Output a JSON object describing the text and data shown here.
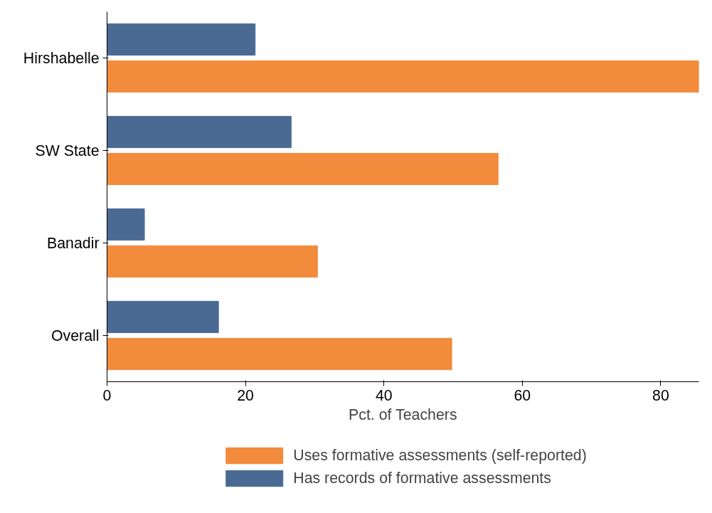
{
  "chart_data": {
    "type": "bar",
    "orientation": "horizontal",
    "categories": [
      "Hirshabelle",
      "SW State",
      "Banadir",
      "Overall"
    ],
    "xlabel": "Pct. of Teachers",
    "series": [
      {
        "name": "Uses formative assessments (self-reported)",
        "color": "#f28b3c",
        "values": [
          85.5,
          56.5,
          30.4,
          49.8
        ]
      },
      {
        "name": "Has records of formative assessments",
        "color": "#4a6a94",
        "values": [
          21.4,
          26.6,
          5.4,
          16.1
        ]
      }
    ],
    "xlim": [
      0,
      85.5
    ],
    "xticks": [
      0,
      20,
      40,
      60,
      80
    ],
    "grid": false,
    "legend": "bottom"
  }
}
